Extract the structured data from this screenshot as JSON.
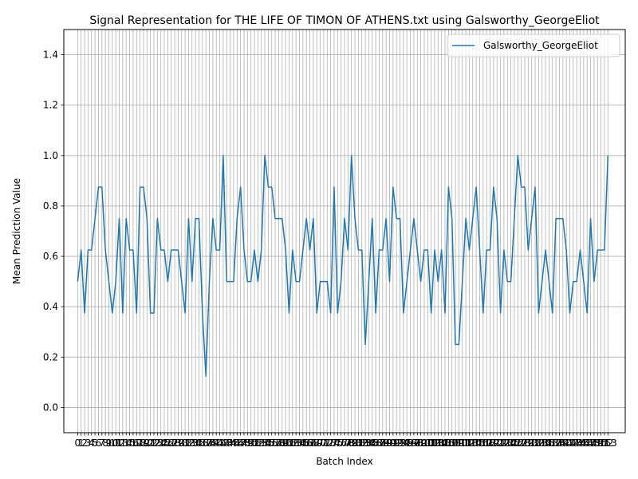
{
  "chart_data": {
    "type": "line",
    "title": "Signal Representation for THE LIFE OF TIMON OF ATHENS.txt using Galsworthy_GeorgeEliot",
    "xlabel": "Batch Index",
    "ylabel": "Mean Prediction Value",
    "xlim": [
      -4,
      158
    ],
    "ylim": [
      -0.1,
      1.5
    ],
    "yticks": [
      "0.0",
      "0.2",
      "0.4",
      "0.6",
      "0.8",
      "1.0",
      "1.2",
      "1.4"
    ],
    "grid": true,
    "legend_position": "top-right",
    "series": [
      {
        "name": "Galsworthy_GeorgeEliot",
        "color": "#1f77b4",
        "values": [
          0.5,
          0.625,
          0.375,
          0.625,
          0.625,
          0.75,
          0.875,
          0.875,
          0.625,
          0.5,
          0.375,
          0.5,
          0.75,
          0.375,
          0.75,
          0.625,
          0.625,
          0.375,
          0.875,
          0.875,
          0.75,
          0.375,
          0.375,
          0.75,
          0.625,
          0.625,
          0.5,
          0.625,
          0.625,
          0.625,
          0.5,
          0.375,
          0.75,
          0.5,
          0.75,
          0.75,
          0.375,
          0.125,
          0.5,
          0.75,
          0.625,
          0.625,
          1.0,
          0.5,
          0.5,
          0.5,
          0.75,
          0.875,
          0.625,
          0.5,
          0.5,
          0.625,
          0.5,
          0.625,
          1.0,
          0.875,
          0.875,
          0.75,
          0.75,
          0.75,
          0.625,
          0.375,
          0.625,
          0.5,
          0.5,
          0.625,
          0.75,
          0.625,
          0.75,
          0.375,
          0.5,
          0.5,
          0.5,
          0.375,
          0.875,
          0.375,
          0.5,
          0.75,
          0.625,
          1.0,
          0.75,
          0.625,
          0.625,
          0.25,
          0.5,
          0.75,
          0.375,
          0.625,
          0.625,
          0.75,
          0.5,
          0.875,
          0.75,
          0.75,
          0.375,
          0.5,
          0.625,
          0.75,
          0.625,
          0.5,
          0.625,
          0.625,
          0.375,
          0.625,
          0.5,
          0.625,
          0.375,
          0.875,
          0.75,
          0.25,
          0.25,
          0.5,
          0.75,
          0.625,
          0.75,
          0.875,
          0.625,
          0.375,
          0.625,
          0.625,
          0.875,
          0.75,
          0.375,
          0.625,
          0.5,
          0.5,
          0.75,
          1.0,
          0.875,
          0.875,
          0.625,
          0.75,
          0.875,
          0.375,
          0.5,
          0.625,
          0.5,
          0.375,
          0.75,
          0.75,
          0.75,
          0.625,
          0.375,
          0.5,
          0.5,
          0.625,
          0.5,
          0.375,
          0.75,
          0.5,
          0.625,
          0.625,
          0.625,
          1.0
        ]
      }
    ]
  }
}
